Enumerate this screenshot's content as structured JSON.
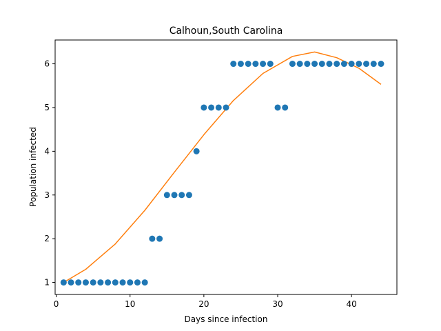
{
  "chart_data": {
    "type": "scatter",
    "title": "Calhoun,South Carolina",
    "xlabel": "Days since infection",
    "ylabel": "Population infected",
    "xlim": [
      -0.15,
      46.15
    ],
    "ylim": [
      0.725,
      6.545
    ],
    "xticks": [
      0,
      10,
      20,
      30,
      40
    ],
    "yticks": [
      1,
      2,
      3,
      4,
      5,
      6
    ],
    "grid": false,
    "colors": {
      "points": "#1f77b4",
      "fit": "#ff7f0e"
    },
    "series": [
      {
        "kind": "scatter",
        "x": [
          1,
          2,
          3,
          4,
          5,
          6,
          7,
          8,
          9,
          10,
          11,
          12,
          13,
          14,
          15,
          16,
          17,
          18,
          19,
          20,
          21,
          22,
          23,
          24,
          25,
          26,
          27,
          28,
          29,
          30,
          31,
          32,
          33,
          34,
          35,
          36,
          37,
          38,
          39,
          40,
          41,
          42,
          43,
          44
        ],
        "y": [
          1,
          1,
          1,
          1,
          1,
          1,
          1,
          1,
          1,
          1,
          1,
          1,
          2,
          2,
          3,
          3,
          3,
          3,
          4,
          5,
          5,
          5,
          5,
          6,
          6,
          6,
          6,
          6,
          6,
          5,
          5,
          6,
          6,
          6,
          6,
          6,
          6,
          6,
          6,
          6,
          6,
          6,
          6,
          6
        ]
      },
      {
        "kind": "line",
        "x": [
          1,
          4,
          8,
          12,
          16,
          20,
          24,
          28,
          32,
          35,
          38,
          41,
          44
        ],
        "y": [
          1.0,
          1.3,
          1.88,
          2.65,
          3.52,
          4.38,
          5.16,
          5.78,
          6.17,
          6.27,
          6.14,
          5.9,
          5.53
        ]
      }
    ]
  }
}
